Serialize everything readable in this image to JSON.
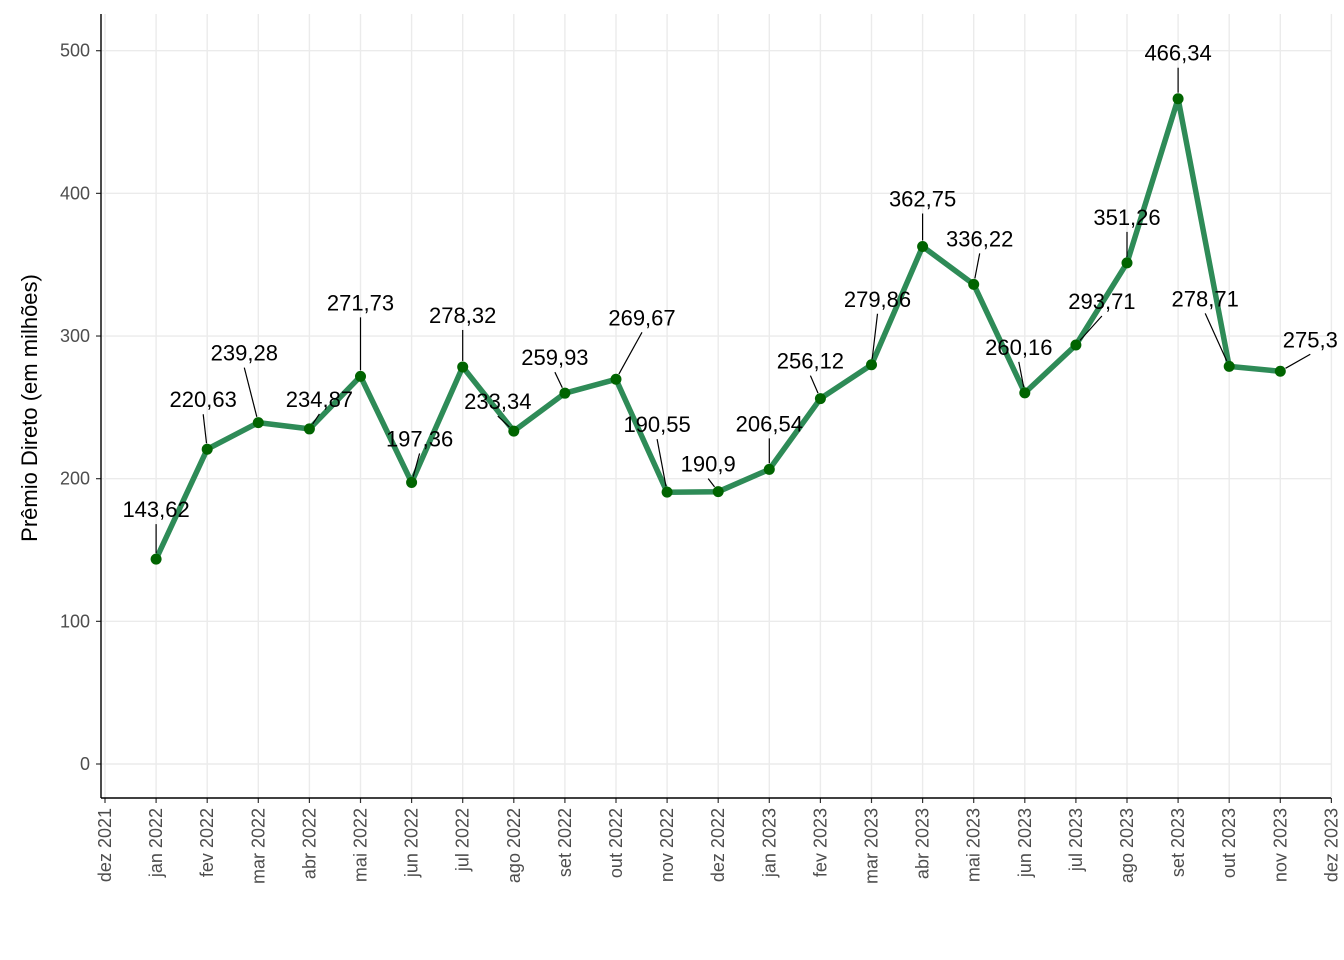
{
  "chart_data": {
    "type": "line",
    "ylabel": "Prêmio Direto (em milhões)",
    "xlabel": "",
    "ylim": [
      -25,
      515
    ],
    "y_ticks": [
      0,
      100,
      200,
      300,
      400,
      500
    ],
    "x_axis_ticks": [
      "dez 2021",
      "jan 2022",
      "fev 2022",
      "mar 2022",
      "abr 2022",
      "mai 2022",
      "jun 2022",
      "jul 2022",
      "ago 2022",
      "set 2022",
      "out 2022",
      "nov 2022",
      "dez 2022",
      "jan 2023",
      "fev 2023",
      "mar 2023",
      "abr 2023",
      "mai 2023",
      "jun 2023",
      "jul 2023",
      "ago 2023",
      "set 2023",
      "out 2023",
      "nov 2023",
      "dez 2023"
    ],
    "categories": [
      "jan 2022",
      "fev 2022",
      "mar 2022",
      "abr 2022",
      "mai 2022",
      "jun 2022",
      "jul 2022",
      "ago 2022",
      "set 2022",
      "out 2022",
      "nov 2022",
      "dez 2022",
      "jan 2023",
      "fev 2023",
      "mar 2023",
      "abr 2023",
      "mai 2023",
      "jun 2023",
      "jul 2023",
      "ago 2023",
      "set 2023",
      "out 2023",
      "nov 2023"
    ],
    "values": [
      143.62,
      220.63,
      239.28,
      234.87,
      271.73,
      197.36,
      278.32,
      233.34,
      259.93,
      269.67,
      190.55,
      190.9,
      206.54,
      256.12,
      279.86,
      362.75,
      336.22,
      260.16,
      293.71,
      351.26,
      466.34,
      278.71,
      275.3
    ],
    "data_labels": [
      "143,62",
      "220,63",
      "239,28",
      "234,87",
      "271,73",
      "197,36",
      "278,32",
      "233,34",
      "259,93",
      "269,67",
      "190,55",
      "190,9",
      "206,54",
      "256,12",
      "279,86",
      "362,75",
      "336,22",
      "260,16",
      "293,71",
      "351,26",
      "466,34",
      "278,71",
      "275,3"
    ],
    "grid": true,
    "legend": "none",
    "colors": {
      "line": "#2e8b57",
      "point": "#006400",
      "grid": "#ebebeb"
    }
  }
}
